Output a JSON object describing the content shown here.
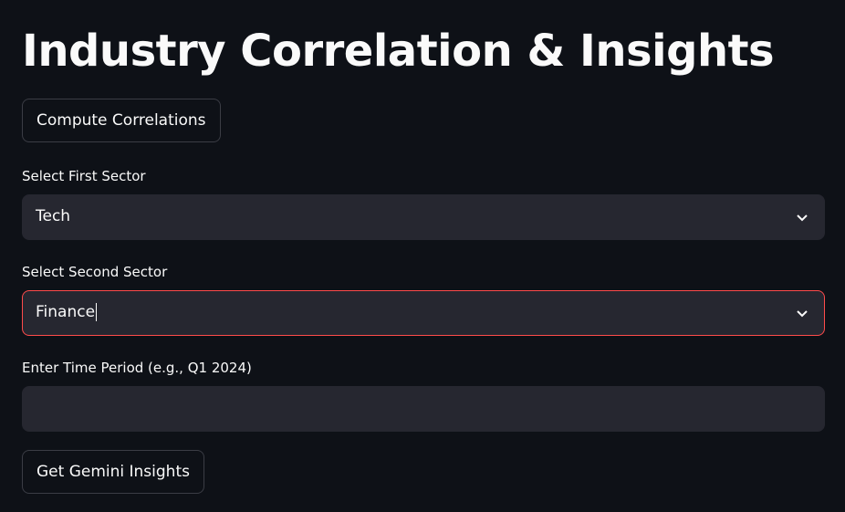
{
  "page": {
    "title": "Industry Correlation & Insights"
  },
  "buttons": {
    "compute": "Compute Correlations",
    "insights": "Get Gemini Insights"
  },
  "first_sector": {
    "label": "Select First Sector",
    "value": "Tech"
  },
  "second_sector": {
    "label": "Select Second Sector",
    "value": "Finance"
  },
  "time_period": {
    "label": "Enter Time Period (e.g., Q1 2024)",
    "value": ""
  },
  "colors": {
    "background": "#0e1117",
    "input_bg": "#262730",
    "focus_border": "#ff4b4b"
  }
}
